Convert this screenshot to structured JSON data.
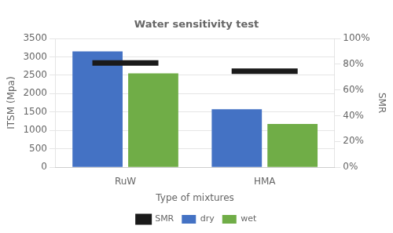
{
  "chart_data": {
    "type": "bar",
    "title": "Water sensitivity test",
    "xlabel": "Type of mixtures",
    "ylabel": "ITSM (Mpa)",
    "y2label": "SMR",
    "categories": [
      "RuW",
      "HMA"
    ],
    "series": [
      {
        "name": "dry",
        "color": "#4472C4",
        "values": [
          3150,
          1575
        ]
      },
      {
        "name": "wet",
        "color": "#70AD47",
        "values": [
          2550,
          1175
        ]
      },
      {
        "name": "SMR",
        "color": "#1a1a1a",
        "values": [
          0.81,
          0.745
        ],
        "axis": "y2",
        "type": "line",
        "marker": "line",
        "line_style": "none"
      }
    ],
    "ylim": [
      0,
      3500
    ],
    "yticks": [
      0,
      500,
      1000,
      1500,
      2000,
      2500,
      3000,
      3500
    ],
    "y2lim": [
      0,
      1.0
    ],
    "y2ticks": [
      {
        "value": 0.0,
        "label": "0%"
      },
      {
        "value": 0.2,
        "label": "20%"
      },
      {
        "value": 0.4,
        "label": "40%"
      },
      {
        "value": 0.6,
        "label": "60%"
      },
      {
        "value": 0.8,
        "label": "80%"
      },
      {
        "value": 1.0,
        "label": "100%"
      }
    ],
    "grid": true,
    "legend": "bottom"
  }
}
